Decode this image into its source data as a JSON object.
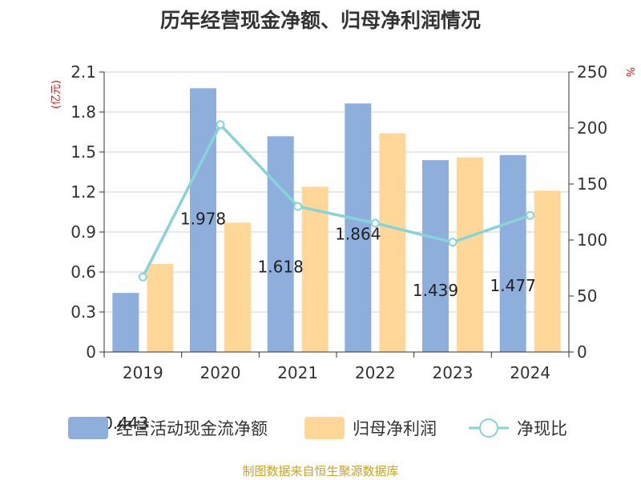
{
  "chart_data": {
    "type": "bar",
    "title": "历年经营现金净额、归母净利润情况",
    "categories": [
      "2019",
      "2020",
      "2021",
      "2022",
      "2023",
      "2024"
    ],
    "series": [
      {
        "name": "经营活动现金流净额",
        "kind": "bar",
        "axis": "left",
        "color": "#8eaedc",
        "values": [
          0.443,
          1.978,
          1.618,
          1.864,
          1.439,
          1.477
        ],
        "labels": [
          "0.443",
          "1.978",
          "1.618",
          "1.864",
          "1.439",
          "1.477"
        ]
      },
      {
        "name": "归母净利润",
        "kind": "bar",
        "axis": "left",
        "color": "#ffd899",
        "values": [
          0.66,
          0.97,
          1.24,
          1.64,
          1.46,
          1.21
        ]
      },
      {
        "name": "净现比",
        "kind": "line",
        "axis": "right",
        "color": "#86d4d8",
        "values": [
          67,
          203,
          130,
          115,
          98,
          122
        ]
      }
    ],
    "left_axis": {
      "unit": "(亿元)",
      "min": 0,
      "max": 2.1,
      "ticks": [
        "0",
        "0.3",
        "0.6",
        "0.9",
        "1.2",
        "1.5",
        "1.8",
        "2.1"
      ]
    },
    "right_axis": {
      "unit": "%",
      "min": 0,
      "max": 250,
      "ticks": [
        "0",
        "50",
        "100",
        "150",
        "200",
        "250"
      ]
    },
    "legend_position": "bottom",
    "grid": true
  },
  "source": "制图数据来自恒生聚源数据库"
}
